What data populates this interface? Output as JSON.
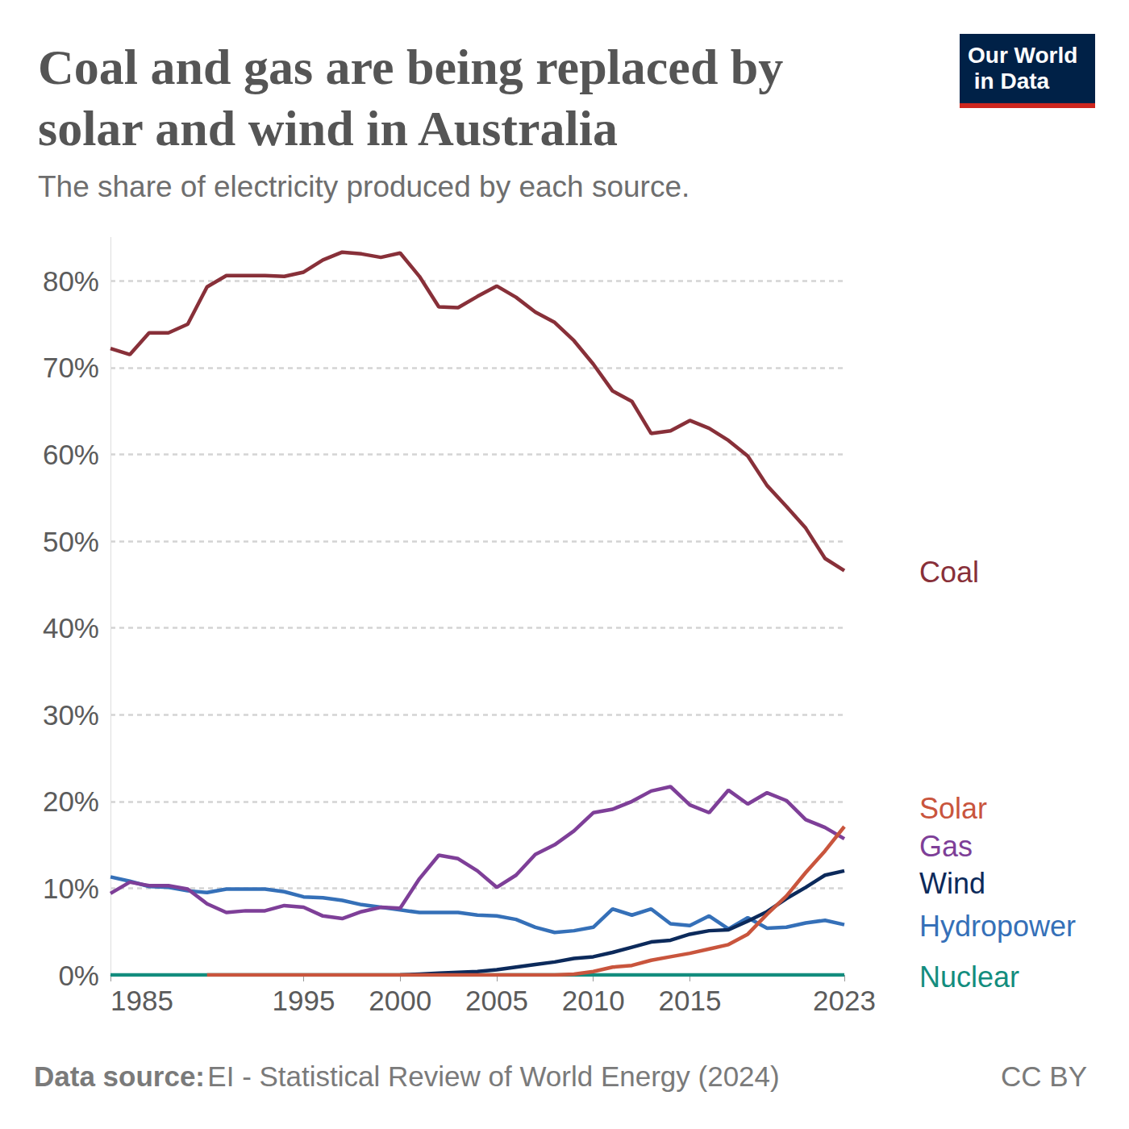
{
  "chart_data": {
    "type": "line",
    "title": "Coal and gas are being replaced by solar and wind in Australia",
    "subtitle": "The share of electricity produced by each source.",
    "logo": "Our World in Data",
    "source_label": "Data source:",
    "source": "EI - Statistical Review of World Energy (2024)",
    "license": "CC BY",
    "x": [
      1985,
      1986,
      1987,
      1988,
      1989,
      1990,
      1991,
      1992,
      1993,
      1994,
      1995,
      1996,
      1997,
      1998,
      1999,
      2000,
      2001,
      2002,
      2003,
      2004,
      2005,
      2006,
      2007,
      2008,
      2009,
      2010,
      2011,
      2012,
      2013,
      2014,
      2015,
      2016,
      2017,
      2018,
      2019,
      2020,
      2021,
      2022,
      2023
    ],
    "xlim": [
      1985,
      2023
    ],
    "xticks": [
      1985,
      1995,
      2000,
      2005,
      2010,
      2015,
      2023
    ],
    "ylim": [
      0,
      85
    ],
    "yticks": [
      {
        "value": 0,
        "label": "0%"
      },
      {
        "value": 10,
        "label": "10%"
      },
      {
        "value": 20,
        "label": "20%"
      },
      {
        "value": 30,
        "label": "30%"
      },
      {
        "value": 40,
        "label": "40%"
      },
      {
        "value": 50,
        "label": "50%"
      },
      {
        "value": 60,
        "label": "60%"
      },
      {
        "value": 70,
        "label": "70%"
      },
      {
        "value": 80,
        "label": "80%"
      }
    ],
    "grid": true,
    "series": [
      {
        "name": "Coal",
        "color": "#883039",
        "values": [
          72.2,
          71.5,
          74.0,
          74.0,
          75.0,
          79.3,
          80.6,
          80.6,
          80.6,
          80.5,
          81.0,
          82.4,
          83.3,
          83.1,
          82.7,
          83.2,
          80.5,
          77.0,
          76.9,
          78.2,
          79.4,
          78.1,
          76.4,
          75.2,
          73.1,
          70.4,
          67.3,
          66.1,
          62.4,
          62.7,
          63.9,
          63.0,
          61.6,
          59.8,
          56.4,
          54.0,
          51.5,
          48.0,
          46.6
        ]
      },
      {
        "name": "Solar",
        "color": "#c9553d",
        "values": [
          null,
          null,
          null,
          null,
          null,
          0.0,
          0.0,
          0.0,
          0.0,
          0.0,
          0.0,
          0.0,
          0.0,
          0.0,
          0.0,
          0.0,
          0.0,
          0.0,
          0.0,
          0.0,
          0.0,
          0.0,
          0.0,
          0.0,
          0.1,
          0.4,
          0.9,
          1.1,
          1.7,
          2.1,
          2.5,
          3.0,
          3.5,
          4.7,
          7.0,
          9.1,
          11.8,
          14.3,
          17.1
        ]
      },
      {
        "name": "Gas",
        "color": "#7e3f98",
        "values": [
          9.4,
          10.7,
          10.3,
          10.3,
          9.9,
          8.2,
          7.2,
          7.4,
          7.4,
          8.0,
          7.8,
          6.8,
          6.5,
          7.3,
          7.8,
          7.7,
          11.1,
          13.8,
          13.4,
          12.0,
          10.1,
          11.5,
          13.9,
          15.0,
          16.6,
          18.7,
          19.1,
          20.0,
          21.2,
          21.7,
          19.6,
          18.7,
          21.3,
          19.7,
          21.0,
          20.1,
          17.9,
          17.0,
          15.7
        ]
      },
      {
        "name": "Wind",
        "color": "#0c2a5b",
        "values": [
          null,
          null,
          null,
          null,
          null,
          null,
          null,
          null,
          null,
          null,
          null,
          null,
          null,
          null,
          null,
          0.0,
          0.1,
          0.2,
          0.3,
          0.4,
          0.6,
          0.9,
          1.2,
          1.5,
          1.9,
          2.1,
          2.6,
          3.2,
          3.8,
          4.0,
          4.7,
          5.1,
          5.2,
          6.2,
          7.3,
          8.8,
          10.1,
          11.5,
          12.0
        ]
      },
      {
        "name": "Hydropower",
        "color": "#3570b8",
        "values": [
          11.3,
          10.8,
          10.2,
          10.1,
          9.7,
          9.5,
          9.9,
          9.9,
          9.9,
          9.6,
          9.0,
          8.9,
          8.6,
          8.1,
          7.8,
          7.5,
          7.2,
          7.2,
          7.2,
          6.9,
          6.8,
          6.4,
          5.5,
          4.9,
          5.1,
          5.5,
          7.6,
          6.9,
          7.6,
          5.9,
          5.7,
          6.8,
          5.3,
          6.6,
          5.4,
          5.5,
          6.0,
          6.3,
          5.8
        ]
      },
      {
        "name": "Nuclear",
        "color": "#138d7e",
        "values": [
          0,
          0,
          0,
          0,
          0,
          0,
          0,
          0,
          0,
          0,
          0,
          0,
          0,
          0,
          0,
          0,
          0,
          0,
          0,
          0,
          0,
          0,
          0,
          0,
          0,
          0,
          0,
          0,
          0,
          0,
          0,
          0,
          0,
          0,
          0,
          0,
          0,
          0,
          0
        ]
      }
    ]
  }
}
